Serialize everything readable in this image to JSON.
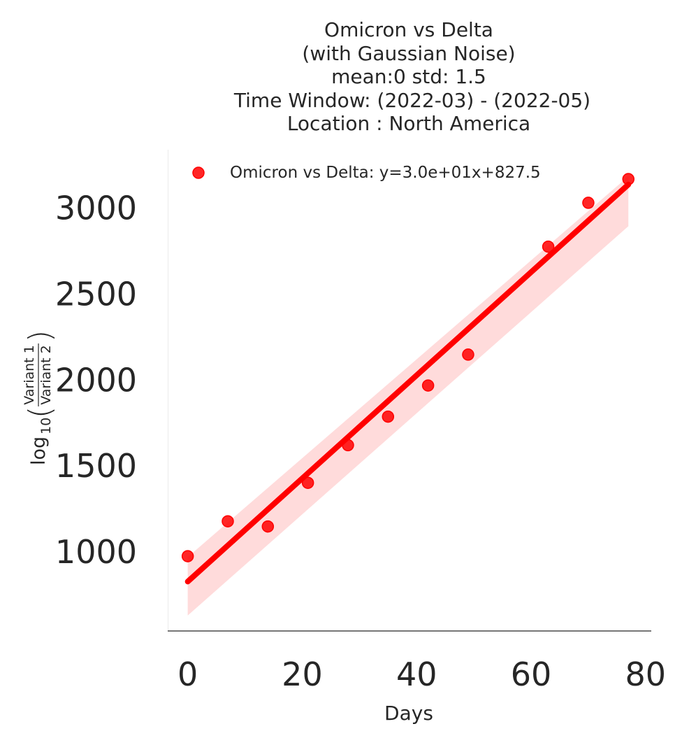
{
  "chart_data": {
    "type": "scatter",
    "title_lines": [
      "Omicron vs Delta",
      "(with Gaussian Noise)",
      "mean:0 std: 1.5",
      "Time Window: (2022-03) - (2022-05)",
      "Location : North America"
    ],
    "xlabel": "Days",
    "ylabel": {
      "prefix": "log",
      "subscript": "10",
      "numerator": "Variant 1",
      "denominator": "Variant 2"
    },
    "xlim": [
      -3.5,
      81
    ],
    "ylim": [
      540,
      3340
    ],
    "xticks": [
      0,
      20,
      40,
      60,
      80
    ],
    "yticks": [
      1000,
      1500,
      2000,
      2500,
      3000
    ],
    "grid": false,
    "legend_position": "top-left",
    "series": [
      {
        "name": "Omicron vs Delta: y=3.0e+01x+827.5",
        "color": "#ff0000",
        "x": [
          0,
          7,
          14,
          21,
          28,
          35,
          42,
          49,
          63,
          70,
          77
        ],
        "y": [
          975,
          1178,
          1148,
          1402,
          1621,
          1787,
          1968,
          2148,
          2776,
          3031,
          3169
        ]
      }
    ],
    "fit": {
      "slope": 30.0,
      "intercept": 827.5,
      "x_range": [
        0,
        77
      ],
      "color": "#ff0000",
      "band_color": "#ffd9d9",
      "confidence_band": {
        "x": [
          0,
          77
        ],
        "lower": [
          630,
          2895
        ],
        "upper": [
          970,
          3185
        ]
      }
    }
  }
}
